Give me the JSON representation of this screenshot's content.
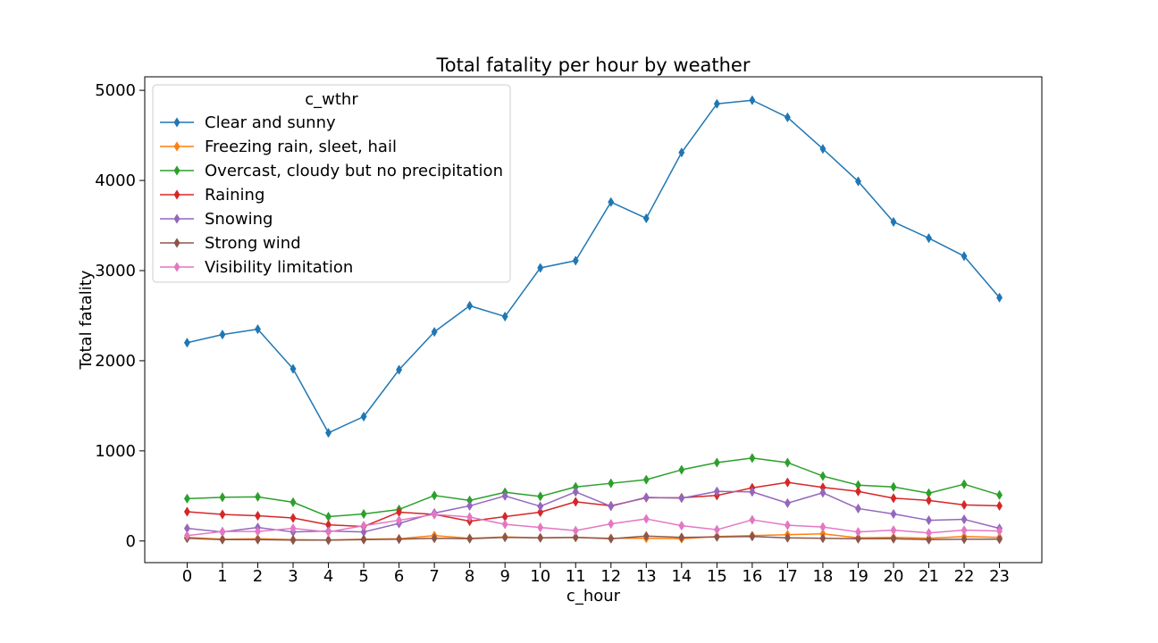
{
  "chart_data": {
    "type": "line",
    "title": "Total fatality per hour by weather",
    "xlabel": "c_hour",
    "ylabel": "Total fatality",
    "x": [
      0,
      1,
      2,
      3,
      4,
      5,
      6,
      7,
      8,
      9,
      10,
      11,
      12,
      13,
      14,
      15,
      16,
      17,
      18,
      19,
      20,
      21,
      22,
      23
    ],
    "y_ticks": [
      0,
      1000,
      2000,
      3000,
      4000,
      5000
    ],
    "ylim": [
      -240,
      5150
    ],
    "xlim": [
      -1.2,
      24.2
    ],
    "grid": false,
    "legend_title": "c_wthr",
    "legend_placement": "upper-left",
    "marker": "thin-diamond",
    "series": [
      {
        "name": "Clear and sunny",
        "color": "#1f77b4",
        "values": [
          2200,
          2290,
          2350,
          1910,
          1200,
          1380,
          1900,
          2320,
          2610,
          2490,
          3030,
          3110,
          3760,
          3580,
          4310,
          4850,
          4890,
          4700,
          4350,
          3990,
          3540,
          3360,
          3160,
          2700
        ]
      },
      {
        "name": "Freezing rain, sleet, hail",
        "color": "#ff7f0e",
        "values": [
          40,
          20,
          25,
          15,
          10,
          20,
          25,
          60,
          30,
          45,
          35,
          40,
          30,
          30,
          25,
          50,
          60,
          70,
          80,
          35,
          40,
          30,
          50,
          40
        ]
      },
      {
        "name": "Overcast, cloudy but no precipitation",
        "color": "#2ca02c",
        "values": [
          470,
          485,
          490,
          430,
          270,
          300,
          350,
          505,
          450,
          540,
          495,
          600,
          640,
          680,
          790,
          870,
          920,
          870,
          720,
          620,
          600,
          530,
          630,
          510
        ]
      },
      {
        "name": "Raining",
        "color": "#d62728",
        "values": [
          325,
          295,
          280,
          255,
          180,
          160,
          320,
          295,
          220,
          270,
          320,
          435,
          390,
          480,
          480,
          505,
          590,
          650,
          595,
          550,
          475,
          450,
          400,
          390
        ]
      },
      {
        "name": "Snowing",
        "color": "#9467bd",
        "values": [
          140,
          100,
          150,
          100,
          110,
          100,
          195,
          310,
          390,
          500,
          385,
          545,
          385,
          485,
          475,
          550,
          545,
          420,
          535,
          360,
          300,
          230,
          240,
          140
        ]
      },
      {
        "name": "Strong wind",
        "color": "#8c564b",
        "values": [
          30,
          15,
          15,
          10,
          10,
          15,
          20,
          30,
          25,
          40,
          35,
          40,
          25,
          55,
          40,
          45,
          50,
          35,
          30,
          25,
          25,
          15,
          20,
          20
        ]
      },
      {
        "name": "Visibility limitation",
        "color": "#e377c2",
        "values": [
          60,
          105,
          105,
          140,
          100,
          170,
          230,
          295,
          265,
          185,
          150,
          115,
          190,
          245,
          170,
          125,
          235,
          175,
          155,
          100,
          120,
          90,
          120,
          110
        ]
      }
    ]
  }
}
